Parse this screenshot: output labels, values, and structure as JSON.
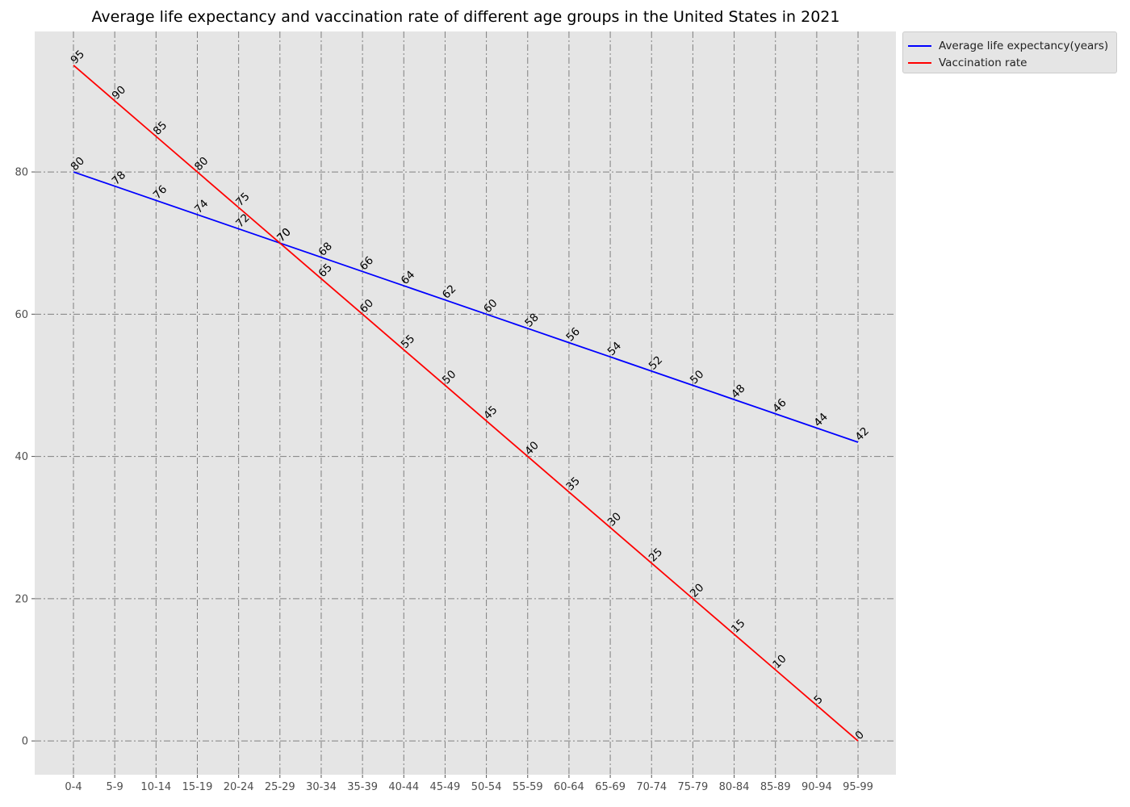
{
  "chart_data": {
    "type": "line",
    "title": "Average life expectancy and vaccination rate of different age groups in the United States in 2021",
    "xlabel": "",
    "ylabel": "",
    "categories": [
      "0-4",
      "5-9",
      "10-14",
      "15-19",
      "20-24",
      "25-29",
      "30-34",
      "35-39",
      "40-44",
      "45-49",
      "50-54",
      "55-59",
      "60-64",
      "65-69",
      "70-74",
      "75-79",
      "80-84",
      "85-89",
      "90-94",
      "95-99"
    ],
    "series": [
      {
        "name": "Average life expectancy(years)",
        "color": "#0000ff",
        "values": [
          80,
          78,
          76,
          74,
          72,
          70,
          68,
          66,
          64,
          62,
          60,
          58,
          56,
          54,
          52,
          50,
          48,
          46,
          44,
          42
        ]
      },
      {
        "name": "Vaccination rate",
        "color": "#ff0000",
        "values": [
          95,
          90,
          85,
          80,
          75,
          70,
          65,
          60,
          55,
          50,
          45,
          40,
          35,
          30,
          25,
          20,
          15,
          10,
          5,
          0
        ]
      }
    ],
    "ylim": [
      -4.75,
      99.75
    ],
    "yticks": [
      0,
      20,
      40,
      60,
      80
    ],
    "grid": true,
    "legend_position": "upper-right-outside",
    "background": "#e5e5e5"
  }
}
